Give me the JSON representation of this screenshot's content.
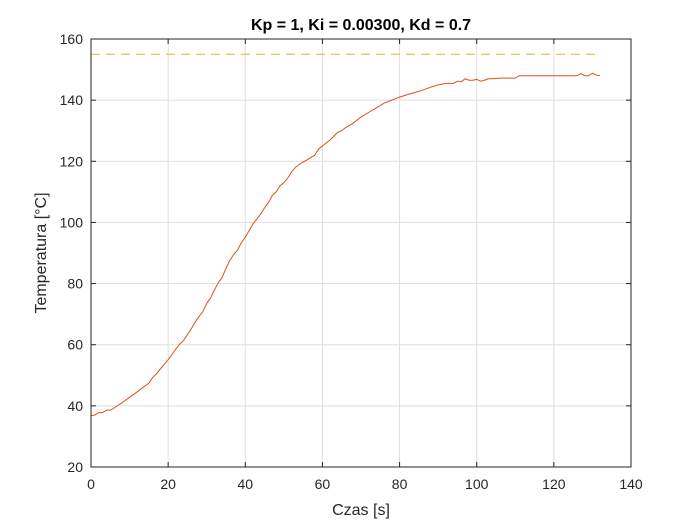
{
  "chart_data": {
    "type": "line",
    "title": "Kp = 1, Ki = 0.00300, Kd = 0.7",
    "xlabel": "Czas [s]",
    "ylabel": "Temperatura [°C]",
    "xlim": [
      0,
      140
    ],
    "ylim": [
      20,
      160
    ],
    "xticks": [
      0,
      20,
      40,
      60,
      80,
      100,
      120,
      140
    ],
    "yticks": [
      20,
      40,
      60,
      80,
      100,
      120,
      140,
      160
    ],
    "grid": true,
    "series": [
      {
        "color": "#d95319",
        "style": "solid",
        "x": [
          0,
          1,
          2,
          3,
          4,
          5,
          6,
          8,
          10,
          12,
          14,
          15,
          16,
          17,
          18,
          19,
          20,
          21,
          22,
          23,
          24,
          25,
          26,
          27,
          28,
          29,
          30,
          31,
          32,
          33,
          34,
          35,
          36,
          37,
          38,
          39,
          40,
          41,
          42,
          43,
          44,
          45,
          46,
          47,
          48,
          49,
          50,
          51,
          52,
          53,
          54,
          56,
          58,
          59,
          60,
          62,
          64,
          65,
          66,
          68,
          70,
          72,
          74,
          76,
          78,
          80,
          82,
          84,
          86,
          88,
          90,
          92,
          94,
          95,
          96,
          97,
          98,
          99,
          100,
          101,
          102,
          103,
          104,
          106,
          108,
          110,
          111,
          112,
          114,
          116,
          118,
          120,
          122,
          124,
          126,
          127,
          128,
          129,
          130,
          131,
          132
        ],
        "values": [
          36.8,
          37.0,
          37.8,
          37.8,
          38.6,
          38.6,
          39.3,
          41.0,
          42.8,
          44.6,
          46.5,
          47.4,
          49.3,
          50.5,
          52.1,
          53.6,
          55.1,
          56.8,
          58.6,
          60.2,
          61.4,
          63.3,
          65.2,
          67.4,
          69.2,
          70.8,
          73.5,
          75.3,
          77.9,
          80.3,
          82.0,
          85.0,
          87.6,
          89.5,
          91.0,
          93.4,
          95.2,
          97.3,
          99.5,
          101.1,
          102.8,
          104.8,
          106.5,
          108.8,
          110.0,
          112.0,
          113.0,
          114.5,
          116.5,
          118.0,
          119.0,
          120.5,
          122.0,
          124.0,
          125.0,
          127.0,
          129.5,
          130.0,
          131.0,
          132.5,
          134.5,
          136.0,
          137.5,
          139.0,
          140.0,
          141.0,
          141.8,
          142.5,
          143.3,
          144.2,
          145.0,
          145.5,
          145.5,
          146.2,
          146.0,
          147.0,
          146.5,
          146.5,
          146.8,
          146.2,
          146.5,
          147.0,
          147.0,
          147.2,
          147.2,
          147.2,
          148.0,
          148.0,
          148.0,
          148.0,
          148.0,
          148.0,
          148.0,
          148.0,
          148.0,
          148.7,
          148.0,
          148.0,
          148.8,
          148.2,
          148.0
        ]
      },
      {
        "color": "#edb120",
        "style": "dashed",
        "x": [
          0,
          132
        ],
        "values": [
          155,
          155
        ]
      }
    ]
  }
}
